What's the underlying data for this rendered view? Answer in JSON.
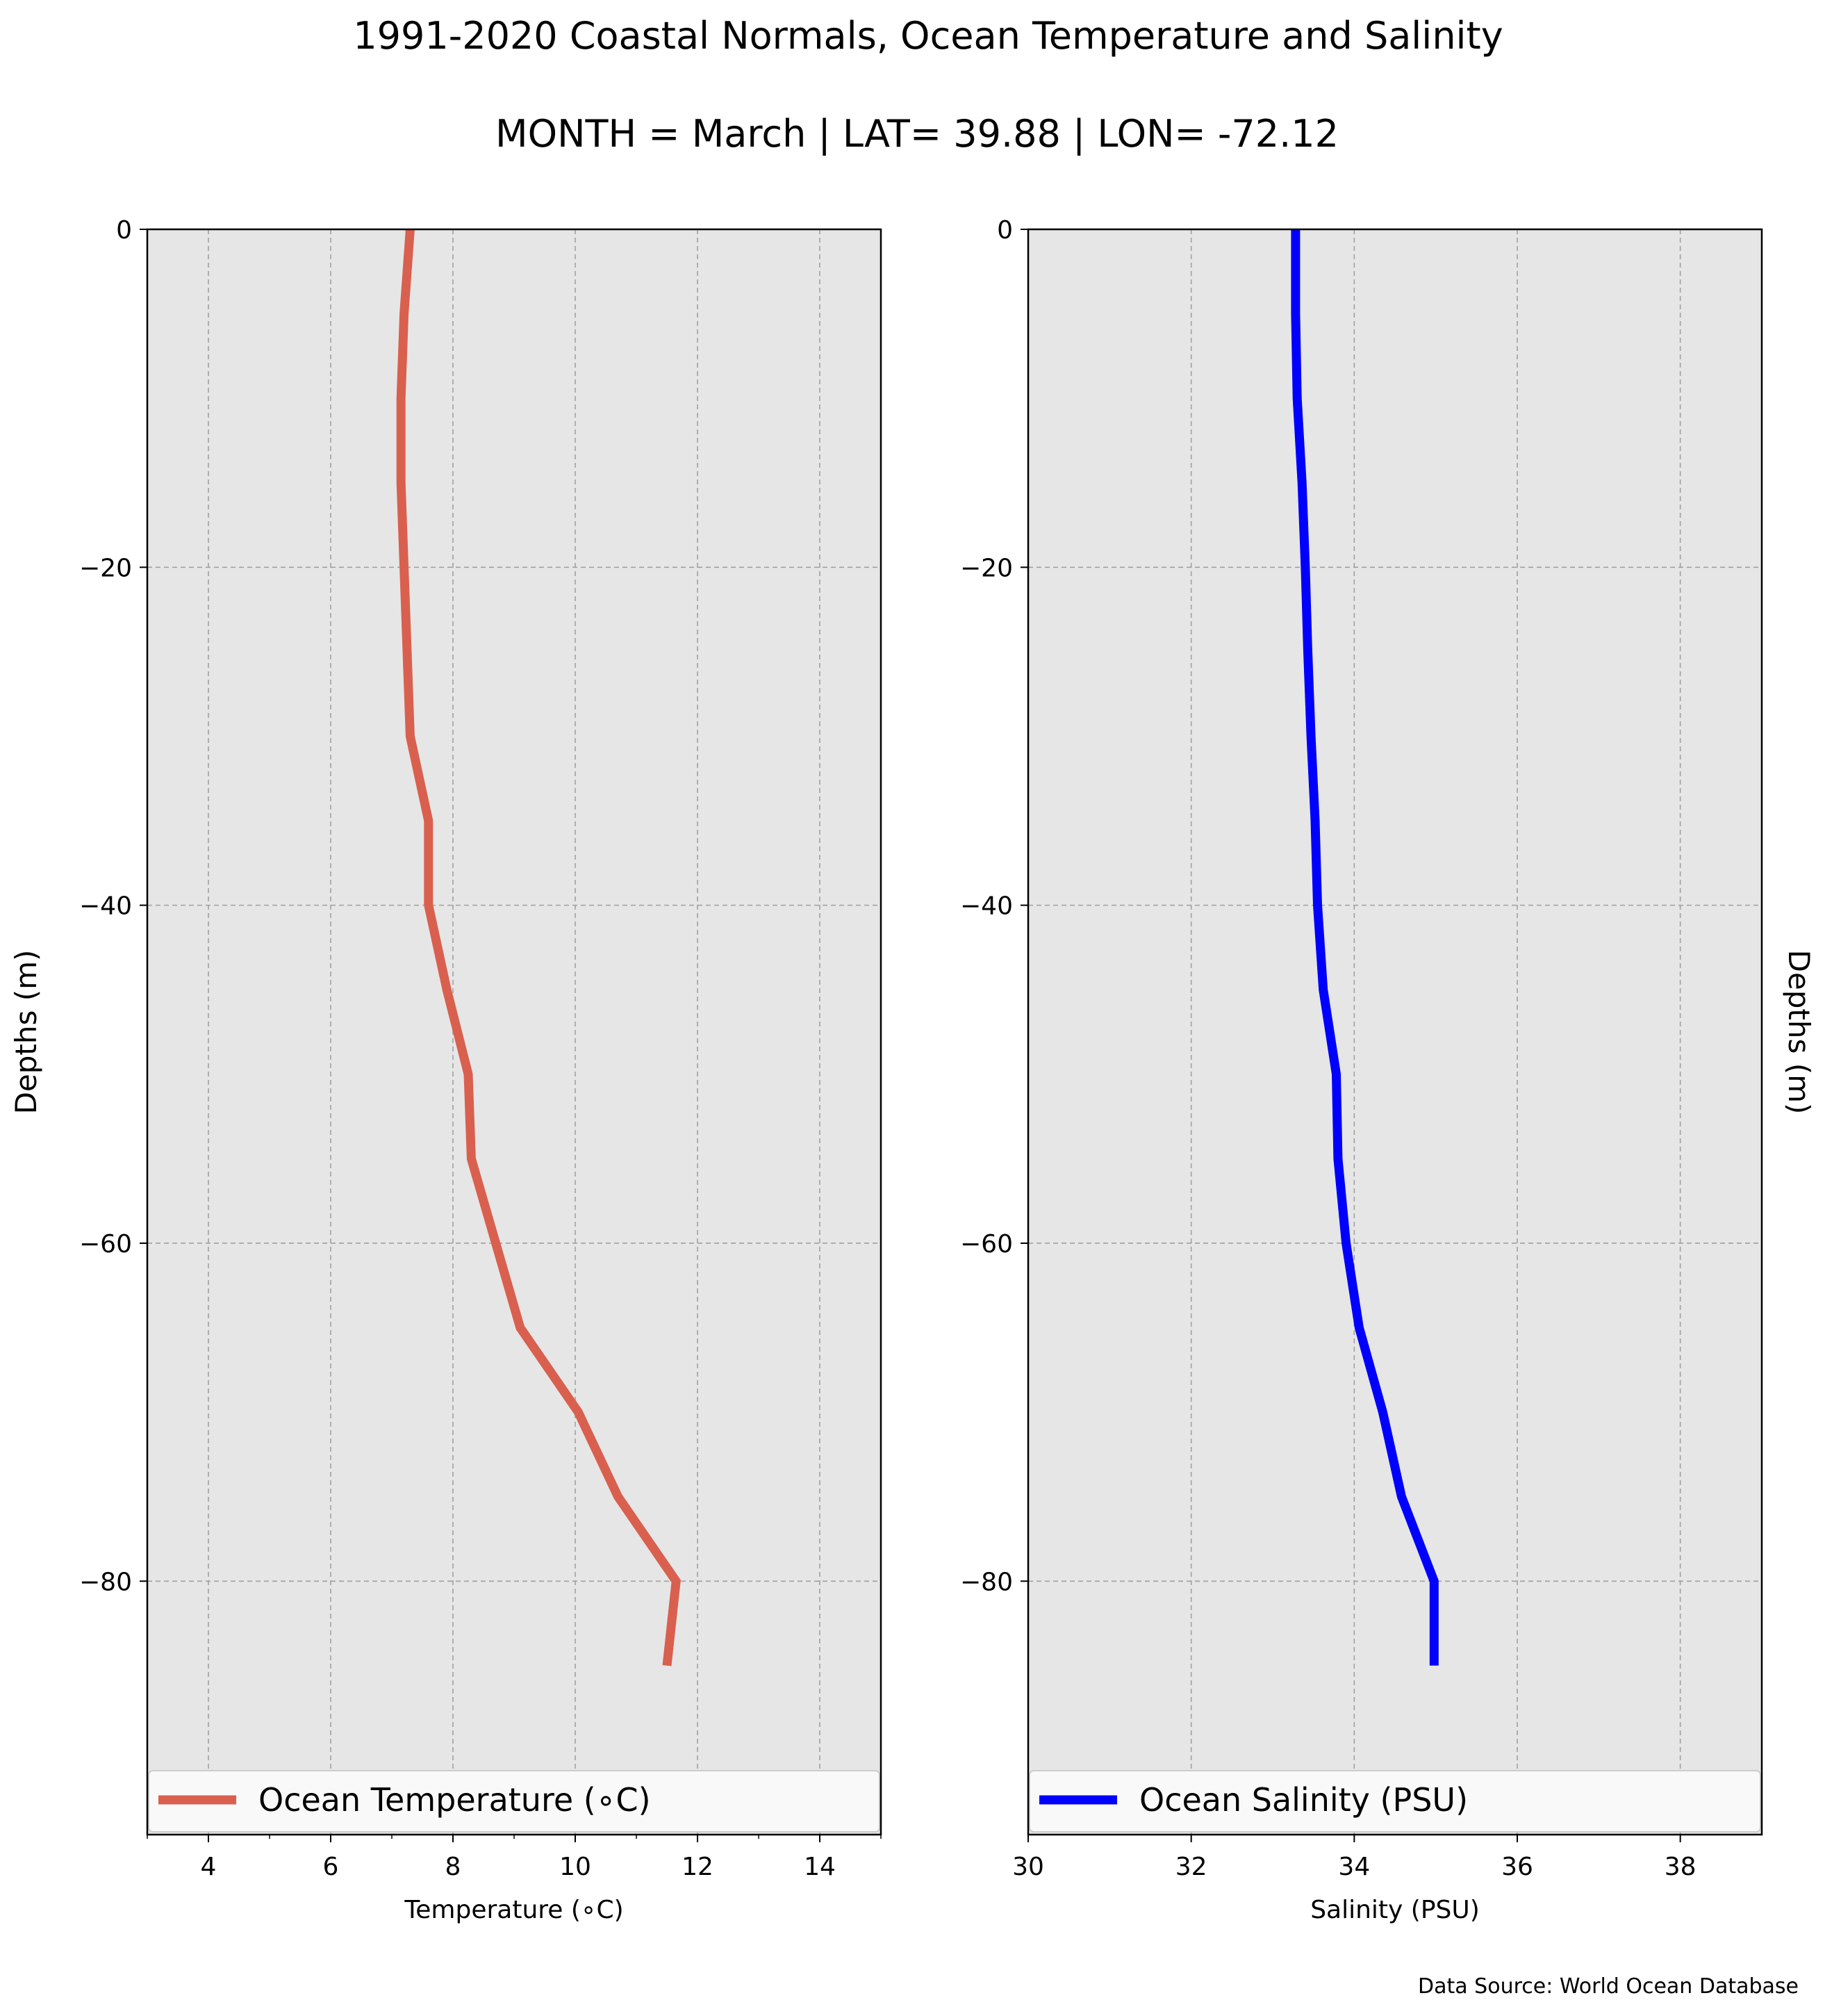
{
  "title": "1991-2020 Coastal Normals, Ocean Temperature and Salinity",
  "subtitle": "MONTH = March | LAT= 39.88 | LON= -72.12",
  "source": "Data Source: World Ocean Database",
  "colors": {
    "background": "#e6e6e6",
    "temperature": "#d9604e",
    "salinity": "#0000ff",
    "grid": "#a0a0a0"
  },
  "chart_data": [
    {
      "type": "line",
      "xlabel": "Temperature (∘C)",
      "ylabel": "Depths (m)",
      "xlim": [
        3,
        15
      ],
      "ylim": [
        -95,
        0
      ],
      "xticks": [
        4,
        6,
        8,
        10,
        12,
        14
      ],
      "xtick_labels": [
        "4",
        "6",
        "8",
        "10",
        "12",
        "14"
      ],
      "yticks": [
        0,
        -20,
        -40,
        -60,
        -80
      ],
      "ytick_labels": [
        "0",
        "−20",
        "−40",
        "−60",
        "−80"
      ],
      "grid": true,
      "legend": "bottom",
      "series": [
        {
          "name": "Ocean Temperature (∘C)",
          "x": [
            7.3,
            7.2,
            7.15,
            7.15,
            7.2,
            7.25,
            7.3,
            7.6,
            7.6,
            7.9,
            8.25,
            8.3,
            8.7,
            9.1,
            10.05,
            10.7,
            11.65,
            11.5
          ],
          "y": [
            0,
            -5,
            -10,
            -15,
            -20,
            -25,
            -30,
            -35,
            -40,
            -45,
            -50,
            -55,
            -60,
            -65,
            -70,
            -75,
            -80,
            -85
          ]
        }
      ]
    },
    {
      "type": "line",
      "xlabel": "Salinity (PSU)",
      "ylabel": "Depths (m)",
      "xlim": [
        30,
        39
      ],
      "ylim": [
        -95,
        0
      ],
      "xticks": [
        30,
        32,
        34,
        36,
        38
      ],
      "xtick_labels": [
        "30",
        "32",
        "34",
        "36",
        "38"
      ],
      "yticks": [
        0,
        -20,
        -40,
        -60,
        -80
      ],
      "ytick_labels": [
        "0",
        "−20",
        "−40",
        "−60",
        "−80"
      ],
      "grid": true,
      "legend": "bottom",
      "series": [
        {
          "name": "Ocean Salinity (PSU)",
          "x": [
            33.28,
            33.28,
            33.3,
            33.36,
            33.4,
            33.43,
            33.47,
            33.52,
            33.55,
            33.62,
            33.78,
            33.8,
            33.9,
            34.06,
            34.35,
            34.58,
            34.98,
            34.98
          ],
          "y": [
            0,
            -5,
            -10,
            -15,
            -20,
            -25,
            -30,
            -35,
            -40,
            -45,
            -50,
            -55,
            -60,
            -65,
            -70,
            -75,
            -80,
            -85
          ]
        }
      ]
    }
  ]
}
